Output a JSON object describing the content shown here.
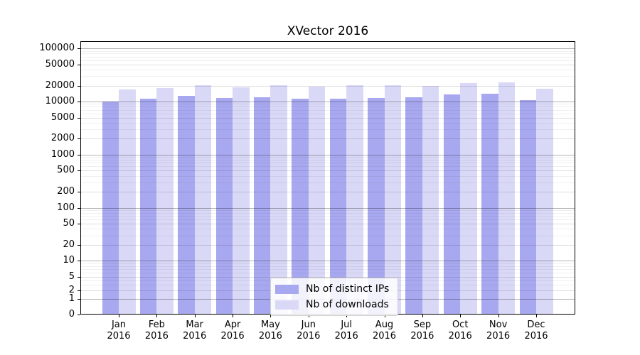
{
  "chart_data": {
    "type": "bar",
    "title": "XVector 2016",
    "y_scale": "symlog",
    "ylim": [
      0,
      140000
    ],
    "grid": "on",
    "legend_position": "lower center",
    "y_ticks": [
      0,
      1,
      2,
      5,
      10,
      20,
      50,
      100,
      200,
      500,
      1000,
      2000,
      5000,
      10000,
      20000,
      50000,
      100000
    ],
    "x_tick_months": [
      "Jan",
      "Feb",
      "Mar",
      "Apr",
      "May",
      "Jun",
      "Jul",
      "Aug",
      "Sep",
      "Oct",
      "Nov",
      "Dec"
    ],
    "x_tick_year": "2016",
    "series": [
      {
        "name": "Nb of distinct IPs",
        "color": "#a8a8f0",
        "values": [
          10100,
          11200,
          12900,
          11600,
          12200,
          11400,
          11500,
          11700,
          11900,
          13500,
          13900,
          10600
        ]
      },
      {
        "name": "Nb of downloads",
        "color": "#d9d9f7",
        "values": [
          17000,
          18200,
          20100,
          18500,
          20300,
          18900,
          20500,
          20100,
          19500,
          22000,
          23000,
          17300
        ]
      }
    ]
  }
}
